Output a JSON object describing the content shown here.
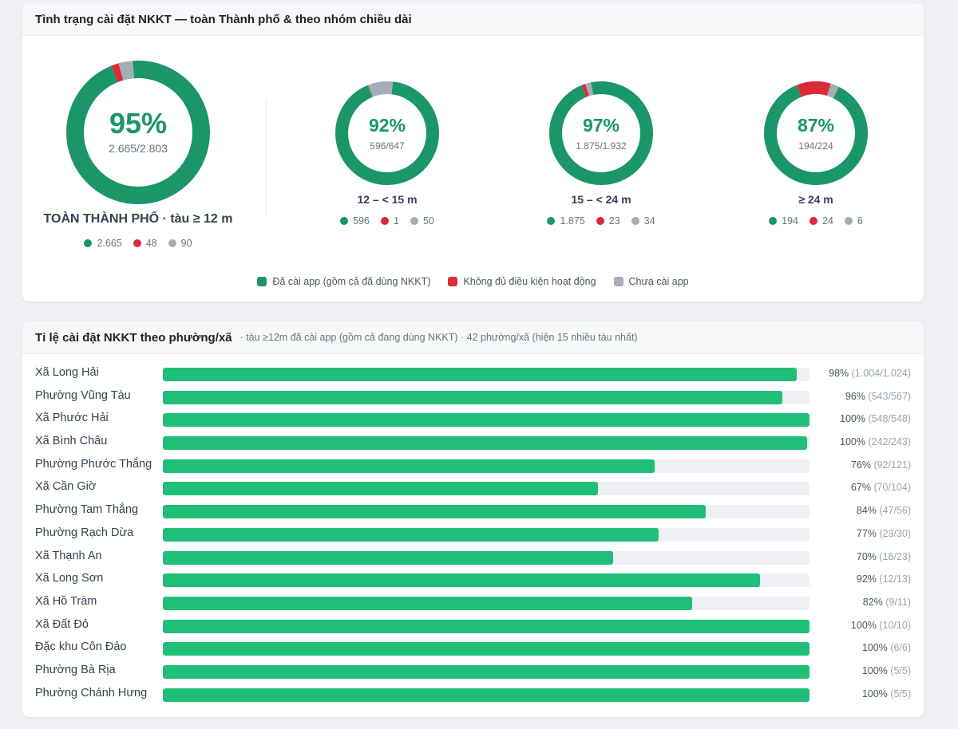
{
  "colors": {
    "installed": "#1a9668",
    "ineligible": "#dc2b36",
    "not_installed": "#a3adb8",
    "bar": "#1fbf78"
  },
  "overview": {
    "title": "Tình trạng cài đặt NKKT — toàn Thành phố & theo nhóm chiều dài",
    "main": {
      "pct": "95%",
      "frac": "2.665/2.803",
      "label": "TOÀN THÀNH PHỐ · tàu ≥ 12 m",
      "installed": "2.665",
      "ineligible": "48",
      "not_installed": "90",
      "values": [
        2665,
        48,
        90
      ]
    },
    "groups": [
      {
        "pct": "92%",
        "frac": "596/647",
        "label": "12 – < 15 m",
        "installed": "596",
        "ineligible": "1",
        "not_installed": "50",
        "values": [
          596,
          1,
          50
        ]
      },
      {
        "pct": "97%",
        "frac": "1.875/1.932",
        "label": "15 – < 24 m",
        "installed": "1.875",
        "ineligible": "23",
        "not_installed": "34",
        "values": [
          1875,
          23,
          34
        ]
      },
      {
        "pct": "87%",
        "frac": "194/224",
        "label": "≥ 24 m",
        "installed": "194",
        "ineligible": "24",
        "not_installed": "6",
        "values": [
          194,
          24,
          6
        ]
      }
    ],
    "legend": {
      "installed": "Đã cài app (gồm cả đã dùng NKKT)",
      "ineligible": "Không đủ điều kiện hoạt động",
      "not_installed": "Chưa cài app"
    }
  },
  "wards": {
    "title": "Tỉ lệ cài đặt NKKT theo phường/xã",
    "subtitle": "· tàu ≥12m đã cài app (gồm cả đang dùng NKKT) · 42 phường/xã (hiện 15 nhiều tàu nhất)",
    "rows": [
      {
        "name": "Xã Long Hải",
        "pct": "98%",
        "detail": "(1.004/1.024)",
        "ratio": 0.98
      },
      {
        "name": "Phường Vũng Tàu",
        "pct": "96%",
        "detail": "(543/567)",
        "ratio": 0.958
      },
      {
        "name": "Xã Phước Hải",
        "pct": "100%",
        "detail": "(548/548)",
        "ratio": 1.0
      },
      {
        "name": "Xã Bình Châu",
        "pct": "100%",
        "detail": "(242/243)",
        "ratio": 0.996
      },
      {
        "name": "Phường Phước Thắng",
        "pct": "76%",
        "detail": "(92/121)",
        "ratio": 0.76
      },
      {
        "name": "Xã Cần Giờ",
        "pct": "67%",
        "detail": "(70/104)",
        "ratio": 0.673
      },
      {
        "name": "Phường Tam Thắng",
        "pct": "84%",
        "detail": "(47/56)",
        "ratio": 0.839
      },
      {
        "name": "Phường Rạch Dừa",
        "pct": "77%",
        "detail": "(23/30)",
        "ratio": 0.767
      },
      {
        "name": "Xã Thạnh An",
        "pct": "70%",
        "detail": "(16/23)",
        "ratio": 0.696
      },
      {
        "name": "Xã Long Sơn",
        "pct": "92%",
        "detail": "(12/13)",
        "ratio": 0.923
      },
      {
        "name": "Xã Hồ Tràm",
        "pct": "82%",
        "detail": "(9/11)",
        "ratio": 0.818
      },
      {
        "name": "Xã Đất Đỏ",
        "pct": "100%",
        "detail": "(10/10)",
        "ratio": 1.0
      },
      {
        "name": "Đặc khu Côn Đảo",
        "pct": "100%",
        "detail": "(6/6)",
        "ratio": 1.0
      },
      {
        "name": "Phường Bà Rịa",
        "pct": "100%",
        "detail": "(5/5)",
        "ratio": 1.0
      },
      {
        "name": "Phường Chánh Hưng",
        "pct": "100%",
        "detail": "(5/5)",
        "ratio": 1.0
      }
    ]
  }
}
